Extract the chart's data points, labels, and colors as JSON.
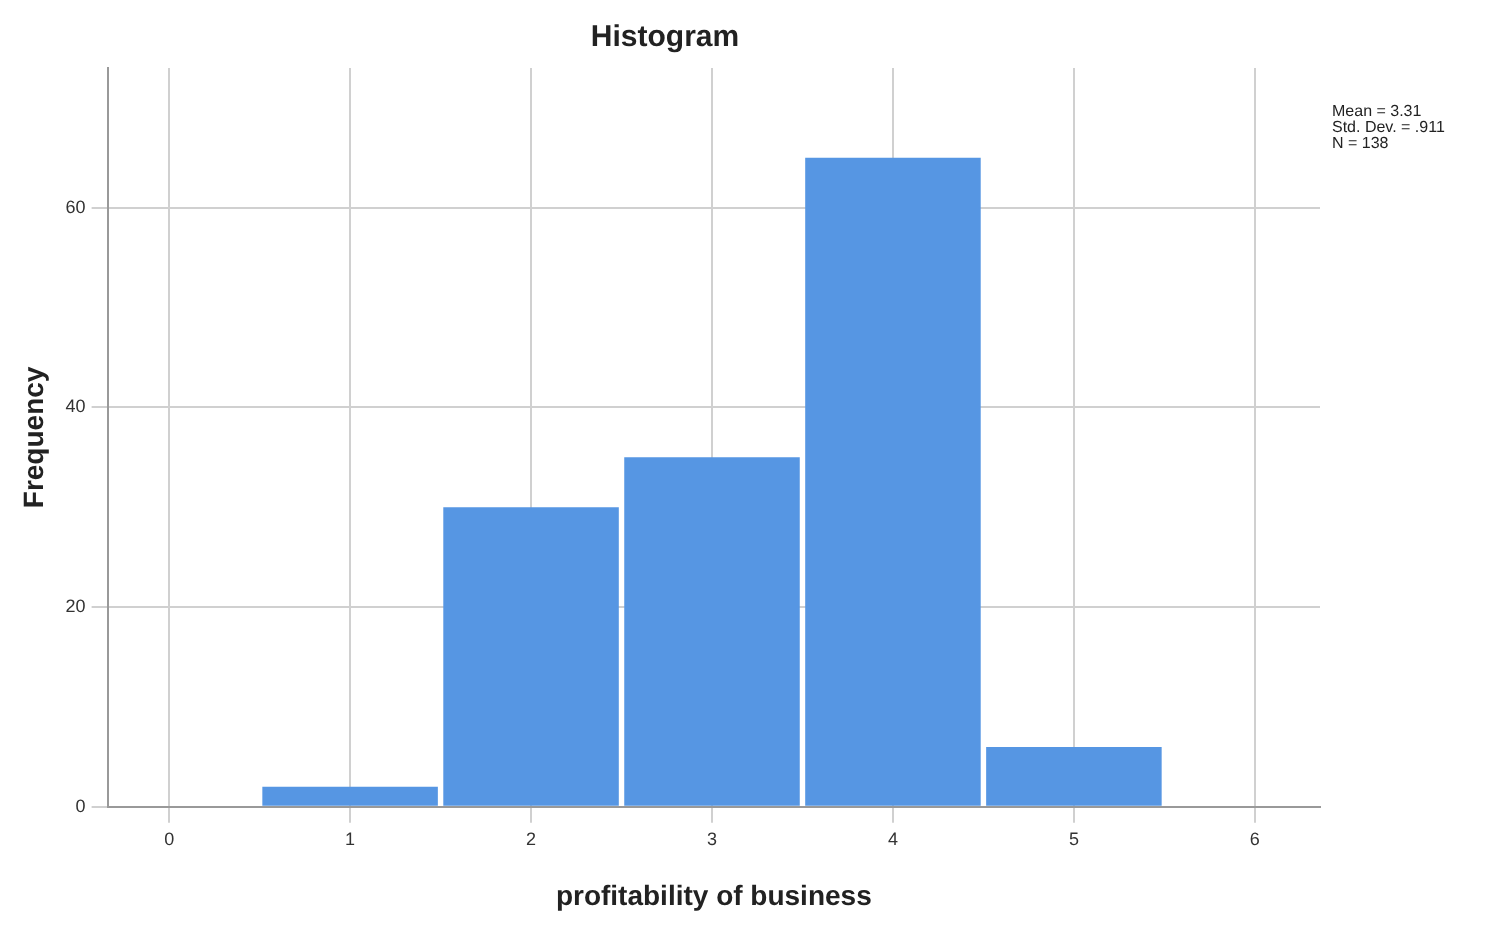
{
  "chart_data": {
    "type": "histogram",
    "title": "Histogram",
    "xlabel": "profitability of business",
    "ylabel": "Frequency",
    "bins": [
      0.5,
      1.5,
      2.5,
      3.5,
      4.5,
      5.5
    ],
    "values": [
      2,
      30,
      35,
      65,
      6
    ],
    "color": "#5696e3",
    "xlim": [
      -0.34,
      6.36
    ],
    "xticks": [
      0,
      1,
      2,
      3,
      4,
      5,
      6
    ],
    "ylim": [
      0,
      74
    ],
    "yticks": [
      0,
      20,
      40,
      60
    ],
    "grid": true,
    "annotations": [
      "Mean = 3.31",
      "Std. Dev. = .911",
      "N = 138"
    ]
  }
}
